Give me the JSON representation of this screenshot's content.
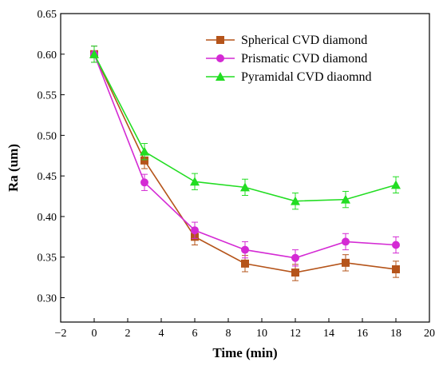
{
  "chart_data": {
    "type": "line",
    "title": "",
    "xlabel": "Time (min)",
    "ylabel": "Ra (um)",
    "xlim": [
      -2,
      20
    ],
    "ylim": [
      0.27,
      0.65
    ],
    "xticks": [
      -2,
      0,
      2,
      4,
      6,
      8,
      10,
      12,
      14,
      16,
      18,
      20
    ],
    "yticks": [
      0.3,
      0.35,
      0.4,
      0.45,
      0.5,
      0.55,
      0.6,
      0.65
    ],
    "xtick_labels": [
      "−2",
      "0",
      "2",
      "4",
      "6",
      "8",
      "10",
      "12",
      "14",
      "16",
      "18",
      "20"
    ],
    "ytick_labels": [
      "0.30",
      "0.35",
      "0.40",
      "0.45",
      "0.50",
      "0.55",
      "0.60",
      "0.65"
    ],
    "grid": false,
    "legend_position": "top-right",
    "series": [
      {
        "name": "Spherical CVD diamond",
        "color": "#b5541a",
        "marker": "square",
        "x": [
          0,
          3,
          6,
          9,
          12,
          15,
          18
        ],
        "y": [
          0.6,
          0.469,
          0.375,
          0.342,
          0.331,
          0.343,
          0.335
        ],
        "error": [
          0.01,
          0.01,
          0.01,
          0.01,
          0.01,
          0.01,
          0.01
        ]
      },
      {
        "name": "Prismatic CVD diamond",
        "color": "#d42ad4",
        "marker": "circle",
        "x": [
          0,
          3,
          6,
          9,
          12,
          15,
          18
        ],
        "y": [
          0.6,
          0.442,
          0.383,
          0.359,
          0.349,
          0.369,
          0.365
        ],
        "error": [
          0.01,
          0.01,
          0.01,
          0.01,
          0.01,
          0.01,
          0.01
        ]
      },
      {
        "name": "Pyramidal CVD diaomnd",
        "color": "#22dd22",
        "marker": "triangle",
        "x": [
          0,
          3,
          6,
          9,
          12,
          15,
          18
        ],
        "y": [
          0.6,
          0.48,
          0.443,
          0.436,
          0.419,
          0.421,
          0.439
        ],
        "error": [
          0.01,
          0.01,
          0.01,
          0.01,
          0.01,
          0.01,
          0.01
        ]
      }
    ]
  }
}
